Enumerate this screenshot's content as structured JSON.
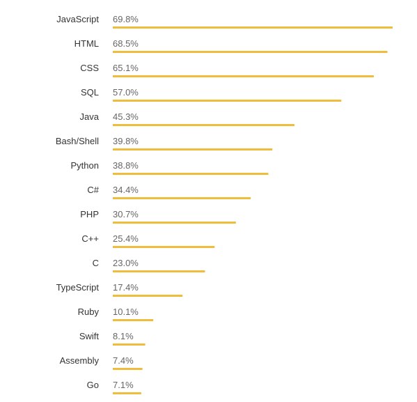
{
  "chart_data": {
    "type": "bar",
    "orientation": "horizontal",
    "categories": [
      "JavaScript",
      "HTML",
      "CSS",
      "SQL",
      "Java",
      "Bash/Shell",
      "Python",
      "C#",
      "PHP",
      "C++",
      "C",
      "TypeScript",
      "Ruby",
      "Swift",
      "Assembly",
      "Go"
    ],
    "values": [
      69.8,
      68.5,
      65.1,
      57.0,
      45.3,
      39.8,
      38.8,
      34.4,
      30.7,
      25.4,
      23.0,
      17.4,
      10.1,
      8.1,
      7.4,
      7.1
    ],
    "value_labels": [
      "69.8%",
      "68.5%",
      "65.1%",
      "57.0%",
      "45.3%",
      "39.8%",
      "38.8%",
      "34.4%",
      "30.7%",
      "25.4%",
      "23.0%",
      "17.4%",
      "10.1%",
      "8.1%",
      "7.4%",
      "7.1%"
    ],
    "unit": "%",
    "xlim": [
      0,
      69.8
    ],
    "grid": false,
    "legend": "none",
    "bar_color": "#f0bc3c"
  }
}
